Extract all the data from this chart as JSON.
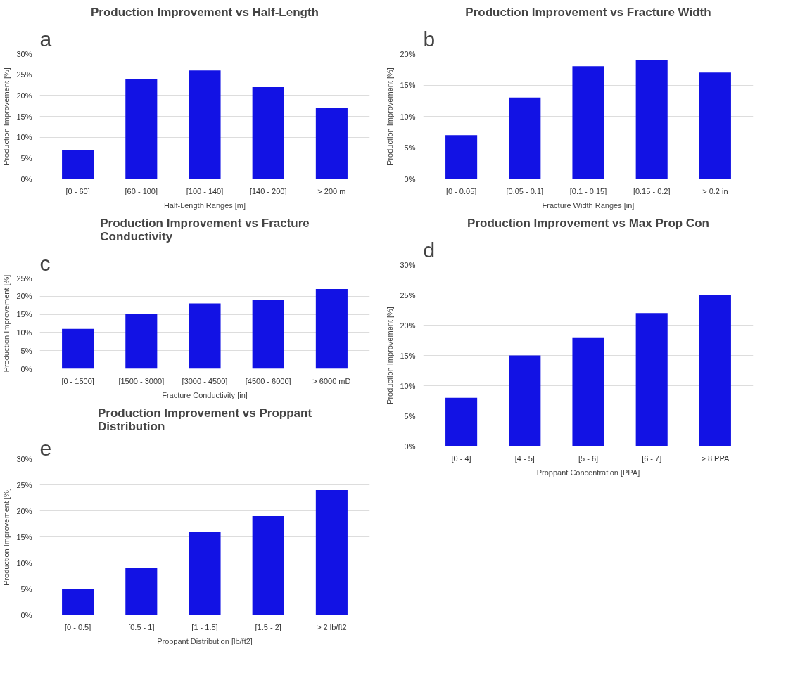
{
  "chart_data": [
    {
      "type": "bar",
      "annotations": [
        "a"
      ],
      "title": "Production Improvement vs Half-Length",
      "xlabel": "Half-Length Ranges [m]",
      "ylabel": "Production Improvement [%]",
      "categories": [
        "[0 - 60]",
        "[60 - 100]",
        "[100 - 140]",
        "[140 - 200]",
        "> 200 m"
      ],
      "values": [
        7,
        24,
        26,
        22,
        17
      ],
      "color": "#1212e4",
      "ylim": [
        0,
        30
      ],
      "yticks": [
        {
          "value": 0,
          "label": "0%"
        },
        {
          "value": 5,
          "label": "5%"
        },
        {
          "value": 10,
          "label": "10%"
        },
        {
          "value": 15,
          "label": "15%"
        },
        {
          "value": 20,
          "label": "20%"
        },
        {
          "value": 25,
          "label": "25%"
        },
        {
          "value": 30,
          "label": "30%"
        }
      ],
      "grid": "y"
    },
    {
      "type": "bar",
      "annotations": [
        "b"
      ],
      "title": "Production Improvement vs Fracture Width",
      "xlabel": "Fracture Width Ranges [in]",
      "ylabel": "Production Improvement [%]",
      "categories": [
        "[0 - 0.05]",
        "[0.05 - 0.1]",
        "[0.1 - 0.15]",
        "[0.15 - 0.2]",
        "> 0.2 in"
      ],
      "values": [
        7,
        13,
        18,
        19,
        17
      ],
      "color": "#1212e4",
      "ylim": [
        0,
        20
      ],
      "yticks": [
        {
          "value": 0,
          "label": "0%"
        },
        {
          "value": 5,
          "label": "5%"
        },
        {
          "value": 10,
          "label": "10%"
        },
        {
          "value": 15,
          "label": "15%"
        },
        {
          "value": 20,
          "label": "20%"
        }
      ],
      "grid": "y"
    },
    {
      "type": "bar",
      "annotations": [
        "c"
      ],
      "title": "Production Improvement vs Fracture\nConductivity",
      "xlabel": "Fracture Conductivity [in]",
      "ylabel": "Production Improvement [%]",
      "categories": [
        "[0 - 1500]",
        "[1500 - 3000]",
        "[3000 - 4500]",
        "[4500 - 6000]",
        "> 6000 mD"
      ],
      "values": [
        11,
        15,
        18,
        19,
        22
      ],
      "color": "#1212e4",
      "ylim": [
        0,
        25
      ],
      "yticks": [
        {
          "value": 0,
          "label": "0%"
        },
        {
          "value": 5,
          "label": "5%"
        },
        {
          "value": 10,
          "label": "10%"
        },
        {
          "value": 15,
          "label": "15%"
        },
        {
          "value": 20,
          "label": "20%"
        },
        {
          "value": 25,
          "label": "25%"
        }
      ],
      "grid": "y"
    },
    {
      "type": "bar",
      "annotations": [
        "d"
      ],
      "title": "Production Improvement vs Max Prop Con",
      "xlabel": "Proppant Concentration [PPA]",
      "ylabel": "Production Improvement [%]",
      "categories": [
        "[0 - 4]",
        "[4 - 5]",
        "[5 - 6]",
        "[6 - 7]",
        "> 8 PPA"
      ],
      "values": [
        8,
        15,
        18,
        22,
        25
      ],
      "color": "#1212e4",
      "ylim": [
        0,
        30
      ],
      "yticks": [
        {
          "value": 0,
          "label": "0%"
        },
        {
          "value": 5,
          "label": "5%"
        },
        {
          "value": 10,
          "label": "10%"
        },
        {
          "value": 15,
          "label": "15%"
        },
        {
          "value": 20,
          "label": "20%"
        },
        {
          "value": 25,
          "label": "25%"
        },
        {
          "value": 30,
          "label": "30%"
        }
      ],
      "grid": "y"
    },
    {
      "type": "bar",
      "annotations": [
        "e"
      ],
      "title": "Production Improvement vs Proppant\nDistribution",
      "xlabel": "Proppant Distribution [lb/ft2]",
      "ylabel": "Production Improvement [%]",
      "categories": [
        "[0 - 0.5]",
        "[0.5 - 1]",
        "[1 - 1.5]",
        "[1.5 - 2]",
        "> 2 lb/ft2"
      ],
      "values": [
        5,
        9,
        16,
        19,
        24
      ],
      "color": "#1212e4",
      "ylim": [
        0,
        30
      ],
      "yticks": [
        {
          "value": 0,
          "label": "0%"
        },
        {
          "value": 5,
          "label": "5%"
        },
        {
          "value": 10,
          "label": "10%"
        },
        {
          "value": 15,
          "label": "15%"
        },
        {
          "value": 20,
          "label": "20%"
        },
        {
          "value": 25,
          "label": "25%"
        },
        {
          "value": 30,
          "label": "30%"
        }
      ],
      "grid": "y"
    }
  ]
}
